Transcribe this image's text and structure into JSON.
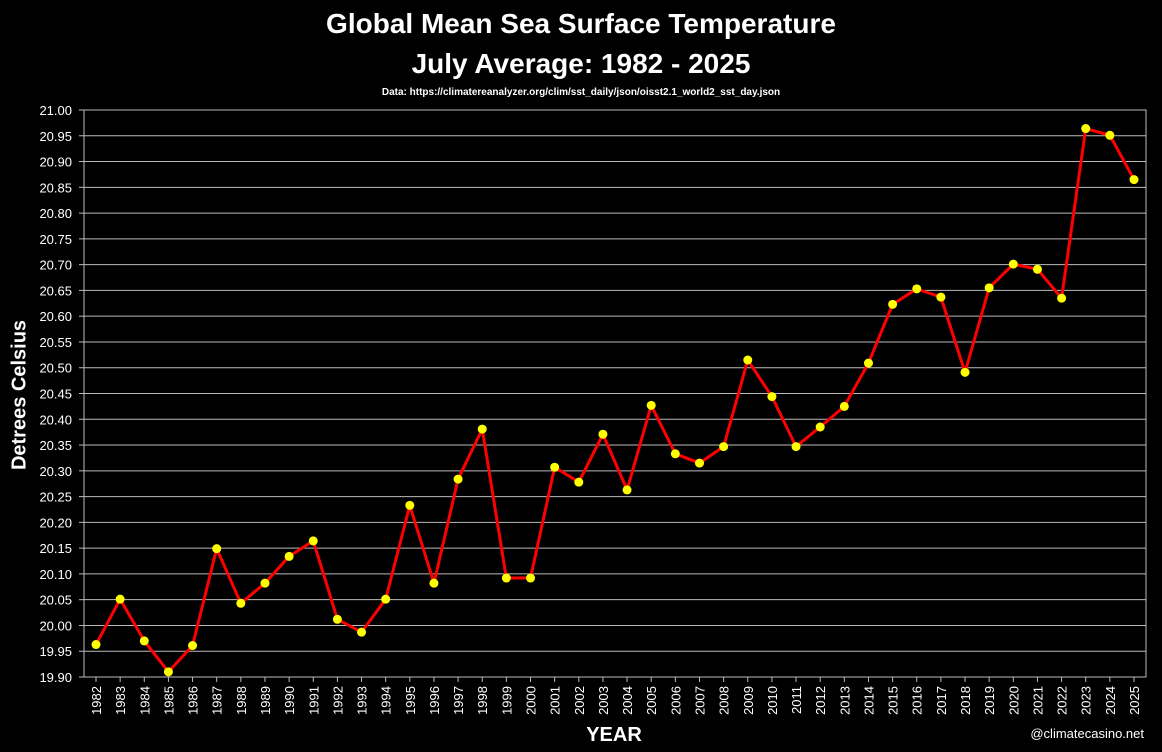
{
  "chart_data": {
    "type": "line",
    "title": "Global Mean Sea Surface Temperature",
    "subtitle": "July Average:  1982 - 2025",
    "source": "Data: https://climatereanalyzer.org/clim/sst_daily/json/oisst2.1_world2_sst_day.json",
    "xlabel": "YEAR",
    "ylabel": "Detrees Celsius",
    "credit": "@climatecasino.net",
    "ylim": [
      19.9,
      21.0
    ],
    "ytick_step": 0.05,
    "grid": true,
    "line_color": "#ff0000",
    "marker_color": "#ffff00",
    "x": [
      1982,
      1983,
      1984,
      1985,
      1986,
      1987,
      1988,
      1989,
      1990,
      1991,
      1992,
      1993,
      1994,
      1995,
      1996,
      1997,
      1998,
      1999,
      2000,
      2001,
      2002,
      2003,
      2004,
      2005,
      2006,
      2007,
      2008,
      2009,
      2010,
      2011,
      2012,
      2013,
      2014,
      2015,
      2016,
      2017,
      2018,
      2019,
      2020,
      2021,
      2022,
      2023,
      2024,
      2025
    ],
    "values": [
      19.963,
      20.051,
      19.97,
      19.91,
      19.961,
      20.149,
      20.043,
      20.082,
      20.134,
      20.164,
      20.012,
      19.987,
      20.051,
      20.233,
      20.082,
      20.284,
      20.381,
      20.092,
      20.092,
      20.307,
      20.278,
      20.371,
      20.263,
      20.427,
      20.333,
      20.315,
      20.347,
      20.515,
      20.444,
      20.347,
      20.385,
      20.425,
      20.509,
      20.623,
      20.653,
      20.637,
      20.491,
      20.655,
      20.701,
      20.691,
      20.635,
      20.964,
      20.951,
      20.865
    ]
  }
}
